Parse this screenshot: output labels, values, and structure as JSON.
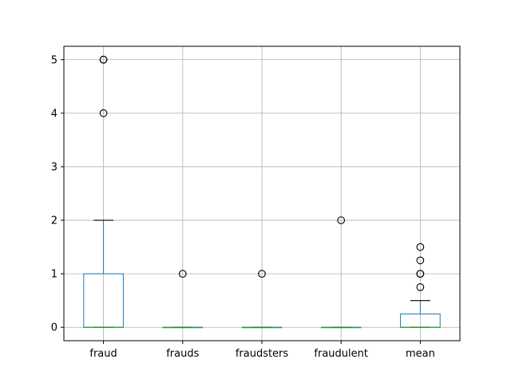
{
  "chart_data": {
    "type": "boxplot",
    "title": "",
    "xlabel": "",
    "ylabel": "",
    "ylim": [
      -0.25,
      5.25
    ],
    "yticks": [
      0,
      1,
      2,
      3,
      4,
      5
    ],
    "ytick_labels": [
      "0",
      "1",
      "2",
      "3",
      "4",
      "5"
    ],
    "grid": true,
    "colors": {
      "box": "#1f77b4",
      "median": "#2ca02c",
      "cap": "#000000",
      "grid": "#b0b0b0",
      "axes": "#000000"
    },
    "categories": [
      "fraud",
      "frauds",
      "fraudsters",
      "fraudulent",
      "mean"
    ],
    "boxes": [
      {
        "name": "fraud",
        "q1": 0,
        "median": 0,
        "q3": 1,
        "whisker_low": 0,
        "whisker_high": 2,
        "outliers": [
          4,
          5,
          5
        ]
      },
      {
        "name": "frauds",
        "q1": 0,
        "median": 0,
        "q3": 0,
        "whisker_low": 0,
        "whisker_high": 0,
        "outliers": [
          1
        ]
      },
      {
        "name": "fraudsters",
        "q1": 0,
        "median": 0,
        "q3": 0,
        "whisker_low": 0,
        "whisker_high": 0,
        "outliers": [
          1
        ]
      },
      {
        "name": "fraudulent",
        "q1": 0,
        "median": 0,
        "q3": 0,
        "whisker_low": 0,
        "whisker_high": 0,
        "outliers": [
          2
        ]
      },
      {
        "name": "mean",
        "q1": 0,
        "median": 0,
        "q3": 0.25,
        "whisker_low": 0,
        "whisker_high": 0.5,
        "outliers": [
          0.75,
          1,
          1,
          1.25,
          1.5
        ]
      }
    ]
  }
}
